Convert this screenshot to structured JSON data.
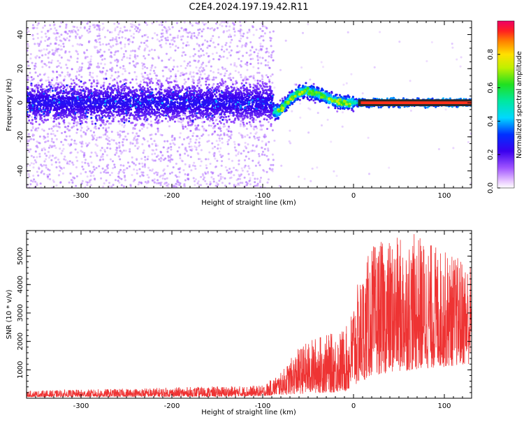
{
  "title": "C2E4.2024.197.19.42.R11",
  "chart_data": [
    {
      "type": "heatmap",
      "xlabel": "Height of straight line (km)",
      "ylabel": "Frequency (Hz)",
      "xlim": [
        -360,
        130
      ],
      "ylim": [
        -50,
        48
      ],
      "xticks": [
        -300,
        -200,
        -100,
        0,
        100
      ],
      "yticks": [
        -40,
        -20,
        0,
        20,
        40
      ],
      "grid": false,
      "trace_points": [
        {
          "x": -82,
          "y": -5
        },
        {
          "x": -75,
          "y": -1
        },
        {
          "x": -68,
          "y": 3
        },
        {
          "x": -60,
          "y": 6
        },
        {
          "x": -52,
          "y": 7
        },
        {
          "x": -45,
          "y": 6
        },
        {
          "x": -38,
          "y": 5
        },
        {
          "x": -30,
          "y": 3
        },
        {
          "x": -20,
          "y": 1
        },
        {
          "x": -10,
          "y": 0
        },
        {
          "x": 0,
          "y": 0
        },
        {
          "x": 20,
          "y": 0
        },
        {
          "x": 60,
          "y": 0
        },
        {
          "x": 100,
          "y": 0
        },
        {
          "x": 130,
          "y": 0
        }
      ],
      "colorbar": {
        "label": "Normalized spectral amplitude",
        "range": [
          0,
          1
        ],
        "ticks": [
          "0.0",
          "0.2",
          "0.4",
          "0.6",
          "0.8"
        ]
      }
    },
    {
      "type": "line",
      "xlabel": "Height of straight line (km)",
      "ylabel": "SNR (10 * v/v)",
      "xlim": [
        -360,
        130
      ],
      "ylim": [
        0,
        5900
      ],
      "xticks": [
        -300,
        -200,
        -100,
        0,
        100
      ],
      "yticks": [
        1000,
        2000,
        3000,
        4000,
        5000
      ],
      "grid": false,
      "color": "#ee3333",
      "envelope": [
        {
          "x": -360,
          "low": 50,
          "high": 260
        },
        {
          "x": -150,
          "low": 60,
          "high": 420
        },
        {
          "x": -100,
          "low": 80,
          "high": 450
        },
        {
          "x": -80,
          "low": 120,
          "high": 900
        },
        {
          "x": -60,
          "low": 150,
          "high": 1800
        },
        {
          "x": -40,
          "low": 180,
          "high": 2200
        },
        {
          "x": -20,
          "low": 200,
          "high": 2300
        },
        {
          "x": -5,
          "low": 250,
          "high": 2600
        },
        {
          "x": 0,
          "low": 400,
          "high": 3600
        },
        {
          "x": 20,
          "low": 800,
          "high": 5400
        },
        {
          "x": 40,
          "low": 900,
          "high": 5600
        },
        {
          "x": 70,
          "low": 1000,
          "high": 5800
        },
        {
          "x": 100,
          "low": 1100,
          "high": 5200
        },
        {
          "x": 130,
          "low": 1200,
          "high": 4800
        }
      ]
    }
  ]
}
